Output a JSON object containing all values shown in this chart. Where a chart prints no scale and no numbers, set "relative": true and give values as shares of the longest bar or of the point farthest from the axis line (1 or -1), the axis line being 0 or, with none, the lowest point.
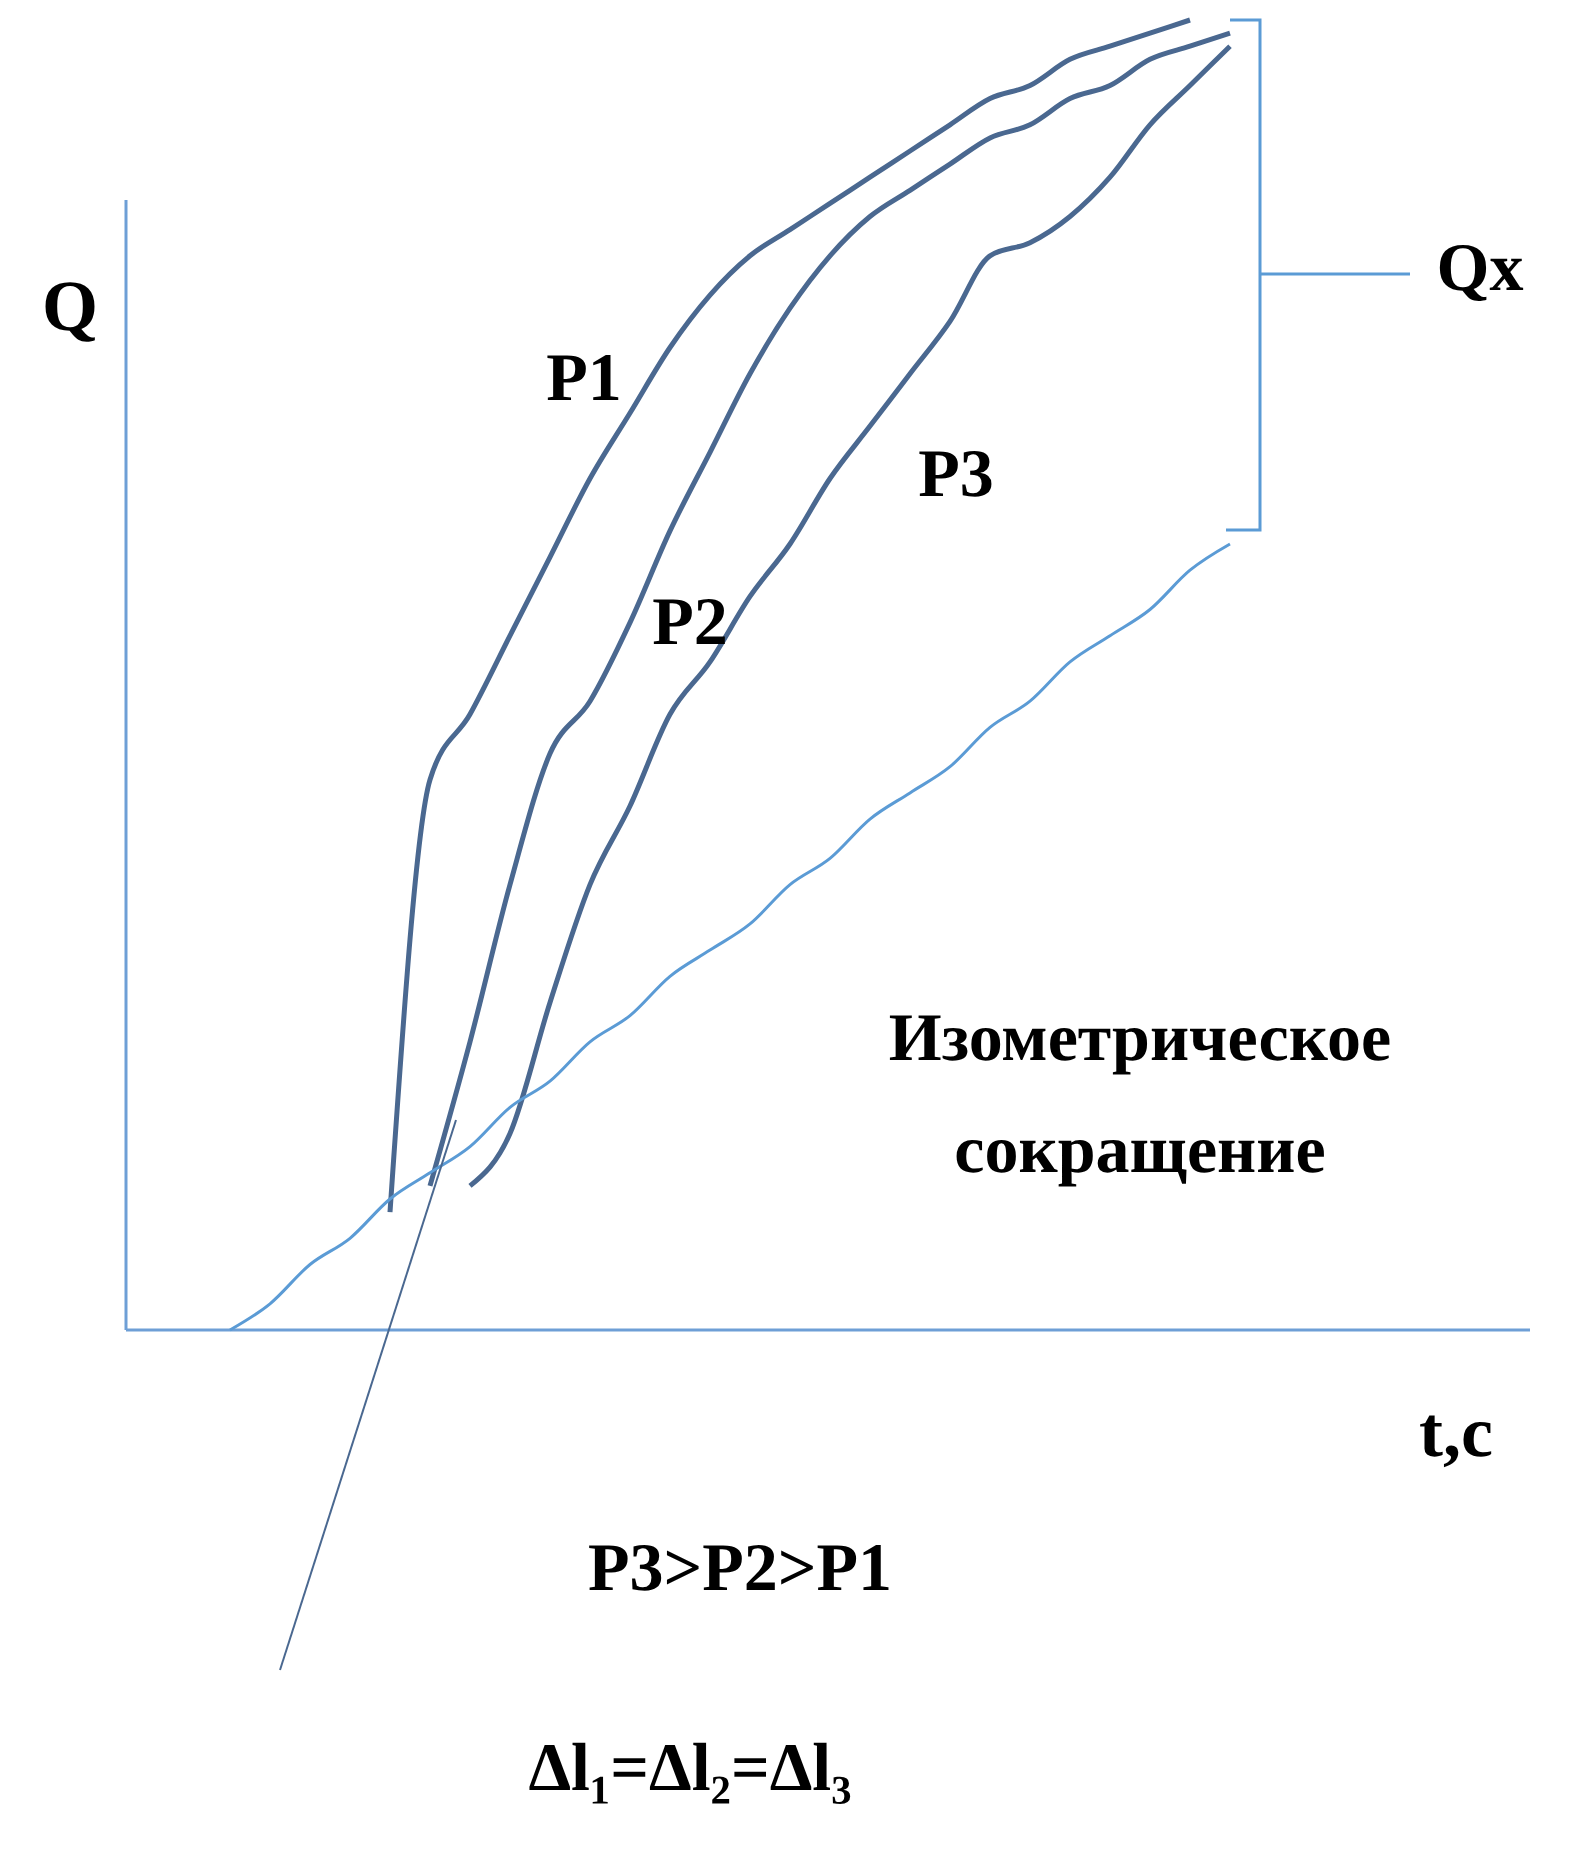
{
  "chart_data": {
    "type": "line",
    "relative": true,
    "xlabel": "t,c",
    "ylabel": "Q",
    "categories": [
      null,
      null,
      null,
      null,
      null,
      null,
      null,
      null,
      null,
      null,
      null,
      null,
      null,
      null,
      null,
      null,
      null,
      null,
      null,
      null,
      null,
      null,
      null,
      null,
      null,
      null,
      null
    ],
    "series": [
      {
        "name": "P1",
        "color": "#4a6890",
        "values": [
          null,
          null,
          null,
          null,
          0.09,
          0.42,
          0.47,
          0.53,
          0.59,
          0.65,
          0.7,
          0.75,
          0.79,
          0.82,
          0.84,
          0.86,
          0.88,
          0.9,
          0.92,
          0.94,
          0.95,
          0.97,
          0.98,
          0.99,
          1,
          null,
          null
        ]
      },
      {
        "name": "P2",
        "color": "#4a6890",
        "values": [
          null,
          null,
          null,
          null,
          null,
          0.11,
          0.22,
          0.34,
          0.44,
          0.48,
          0.54,
          0.61,
          0.67,
          0.73,
          0.78,
          0.82,
          0.85,
          0.87,
          0.89,
          0.91,
          0.92,
          0.94,
          0.95,
          0.97,
          0.98,
          0.99,
          null
        ]
      },
      {
        "name": "P3",
        "color": "#4a6890",
        "values": [
          null,
          null,
          null,
          null,
          null,
          null,
          0.11,
          0.15,
          0.25,
          0.34,
          0.4,
          0.47,
          0.51,
          0.56,
          0.6,
          0.65,
          0.69,
          0.73,
          0.77,
          0.82,
          0.83,
          0.85,
          0.88,
          0.92,
          0.95,
          0.98,
          null
        ]
      },
      {
        "color": "#5b9bd5",
        "values": [
          0,
          0.02,
          0.05,
          0.07,
          0.1,
          0.12,
          0.14,
          0.17,
          0.19,
          0.22,
          0.24,
          0.27,
          0.29,
          0.31,
          0.34,
          0.36,
          0.39,
          0.41,
          0.43,
          0.46,
          0.48,
          0.51,
          0.53,
          0.55,
          0.58,
          0.6,
          null
        ]
      }
    ],
    "annotations": [
      "Qx",
      "Изометрическое сокращение",
      "P3>P2>P1",
      "Δl₁=Δl₂=Δl₃"
    ]
  }
}
